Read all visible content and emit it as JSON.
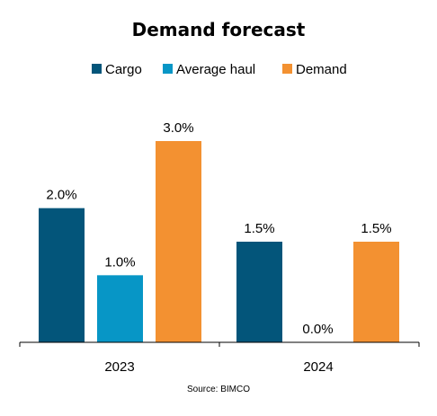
{
  "chart_data": {
    "type": "bar",
    "title": "Demand forecast",
    "categories": [
      "2023",
      "2024"
    ],
    "series": [
      {
        "name": "Cargo",
        "values": [
          2.0,
          1.5
        ],
        "labels": [
          "2.0%",
          "1.5%"
        ],
        "color": "#03557A"
      },
      {
        "name": "Average haul",
        "values": [
          1.0,
          0.0
        ],
        "labels": [
          "1.0%",
          "0.0%"
        ],
        "color": "#0796C6"
      },
      {
        "name": "Demand",
        "values": [
          3.0,
          1.5
        ],
        "labels": [
          "3.0%",
          "1.5%"
        ],
        "color": "#F39131"
      }
    ],
    "ylim": [
      0,
      3.0
    ],
    "grid": false,
    "legend": "top",
    "source": "Source: BIMCO"
  }
}
